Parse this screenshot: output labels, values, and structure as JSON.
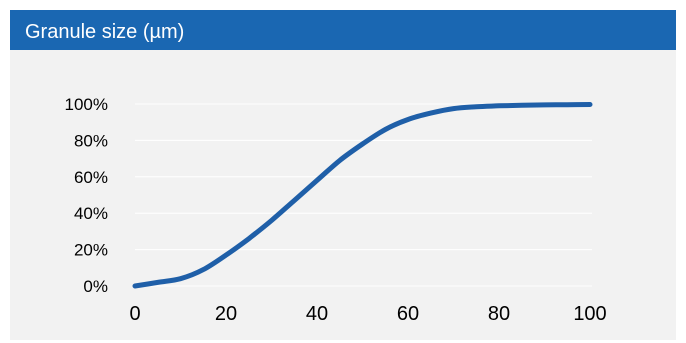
{
  "header": {
    "title": "Granule size (µm)"
  },
  "colors": {
    "header_bg": "#1a67b2",
    "panel_bg": "#f2f2f2",
    "line": "#1f5fa8",
    "grid": "#ffffff"
  },
  "chart_data": {
    "type": "line",
    "title": "Granule size (µm)",
    "xlabel": "",
    "ylabel": "",
    "xlim": [
      0,
      100
    ],
    "ylim": [
      0,
      100
    ],
    "x_ticks": [
      "0",
      "20",
      "40",
      "60",
      "80",
      "100"
    ],
    "y_ticks": [
      "0%",
      "20%",
      "40%",
      "60%",
      "80%",
      "100%"
    ],
    "grid": "horizontal",
    "legend": "none",
    "series": [
      {
        "x": [
          0,
          5,
          10,
          15,
          20,
          25,
          30,
          35,
          40,
          45,
          50,
          55,
          60,
          65,
          70,
          75,
          80,
          85,
          90,
          95,
          100
        ],
        "values": [
          0,
          2,
          4,
          9,
          17,
          26,
          36,
          47,
          58,
          69,
          78,
          86,
          91.5,
          95,
          97.5,
          98.5,
          99,
          99.3,
          99.5,
          99.6,
          99.7
        ]
      }
    ]
  }
}
